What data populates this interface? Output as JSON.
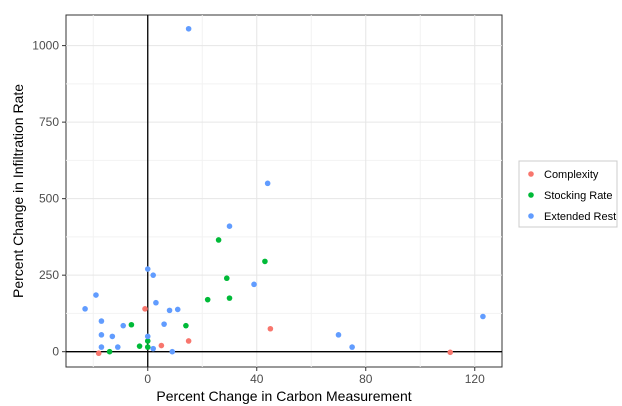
{
  "chart_data": {
    "type": "scatter",
    "title": "",
    "xlabel": "Percent Change in Carbon Measurement",
    "ylabel": "Percent Change in Infiltration Rate",
    "xlim": [
      -30,
      130
    ],
    "ylim": [
      -50,
      1100
    ],
    "x_ticks": [
      0,
      40,
      80,
      120
    ],
    "y_ticks": [
      0,
      250,
      500,
      750,
      1000
    ],
    "x_minor_ticks": [
      -20,
      20,
      60,
      100
    ],
    "y_minor_ticks": [
      125,
      375,
      625,
      875
    ],
    "grid": true,
    "reference_lines": {
      "x": 0,
      "y": 0
    },
    "legend_position": "right",
    "series": [
      {
        "name": "Complexity",
        "color": "#F8766D",
        "points": [
          {
            "x": -18,
            "y": -5
          },
          {
            "x": -1,
            "y": 140
          },
          {
            "x": 5,
            "y": 20
          },
          {
            "x": 15,
            "y": 35
          },
          {
            "x": 45,
            "y": 75
          },
          {
            "x": 111,
            "y": -2
          }
        ]
      },
      {
        "name": "Stocking Rate",
        "color": "#00BA38",
        "points": [
          {
            "x": -14,
            "y": 0
          },
          {
            "x": -6,
            "y": 88
          },
          {
            "x": -3,
            "y": 18
          },
          {
            "x": 0,
            "y": 35
          },
          {
            "x": 0,
            "y": 15
          },
          {
            "x": 14,
            "y": 85
          },
          {
            "x": 22,
            "y": 170
          },
          {
            "x": 26,
            "y": 365
          },
          {
            "x": 29,
            "y": 240
          },
          {
            "x": 30,
            "y": 175
          },
          {
            "x": 43,
            "y": 295
          }
        ]
      },
      {
        "name": "Extended Rest",
        "color": "#619CFF",
        "points": [
          {
            "x": 15,
            "y": 1055
          },
          {
            "x": 44,
            "y": 550
          },
          {
            "x": 30,
            "y": 410
          },
          {
            "x": 0,
            "y": 270
          },
          {
            "x": 2,
            "y": 250
          },
          {
            "x": 39,
            "y": 220
          },
          {
            "x": -19,
            "y": 185
          },
          {
            "x": 3,
            "y": 160
          },
          {
            "x": -23,
            "y": 140
          },
          {
            "x": 8,
            "y": 135
          },
          {
            "x": 11,
            "y": 138
          },
          {
            "x": -17,
            "y": 100
          },
          {
            "x": 6,
            "y": 90
          },
          {
            "x": -9,
            "y": 85
          },
          {
            "x": 0,
            "y": 50
          },
          {
            "x": -17,
            "y": 55
          },
          {
            "x": -13,
            "y": 50
          },
          {
            "x": 70,
            "y": 55
          },
          {
            "x": 123,
            "y": 115
          },
          {
            "x": -17,
            "y": 15
          },
          {
            "x": -11,
            "y": 15
          },
          {
            "x": 2,
            "y": 10
          },
          {
            "x": 9,
            "y": 0
          },
          {
            "x": 75,
            "y": 15
          }
        ]
      }
    ]
  }
}
